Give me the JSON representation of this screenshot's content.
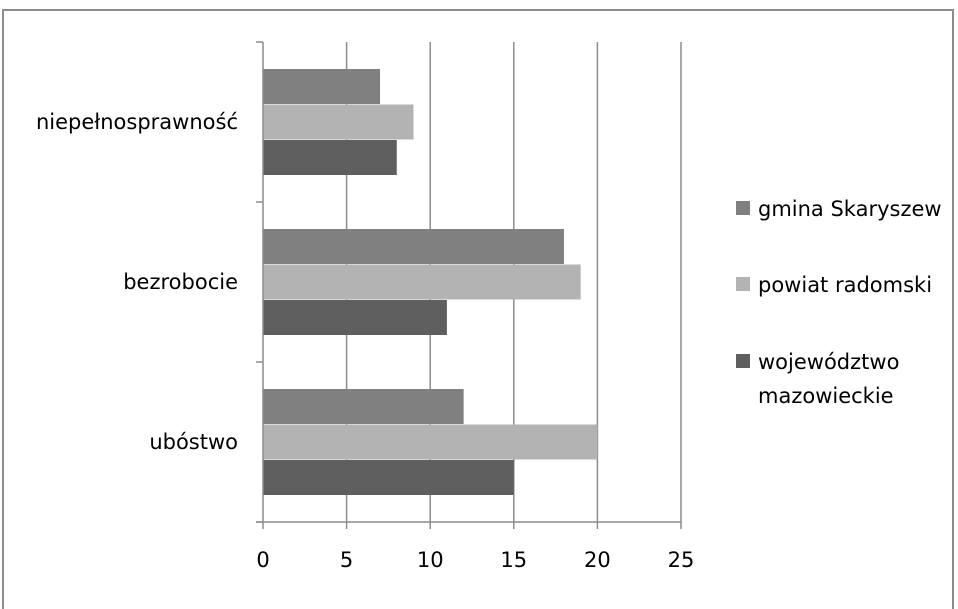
{
  "chart_data": {
    "type": "bar",
    "orientation": "horizontal",
    "categories": [
      "niepełnosprawność",
      "bezrobocie",
      "ubóstwo"
    ],
    "series": [
      {
        "name": "gmina Skaryszew",
        "values": [
          7,
          18,
          12
        ],
        "color": "#808080"
      },
      {
        "name": "powiat radomski",
        "values": [
          9,
          19,
          20
        ],
        "color": "#b3b3b3"
      },
      {
        "name": "województwo mazowieckie",
        "legend_lines": [
          "województwo",
          "mazowieckie"
        ],
        "values": [
          8,
          11,
          15
        ],
        "color": "#5f5f5f"
      }
    ],
    "xlim": [
      0,
      25
    ],
    "xticks": [
      0,
      5,
      10,
      15,
      20,
      25
    ],
    "grid": "vertical",
    "legend_position": "right"
  }
}
